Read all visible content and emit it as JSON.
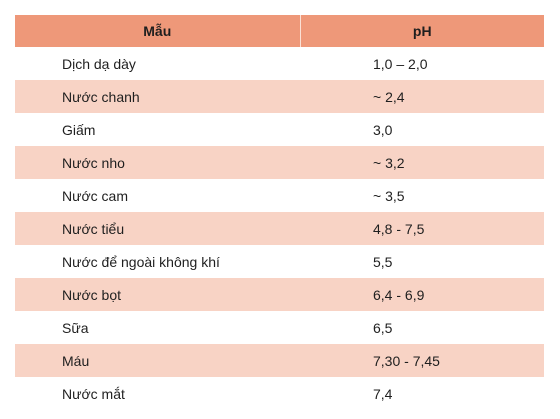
{
  "table": {
    "headers": {
      "sample": "Mẫu",
      "ph": "pH"
    },
    "rows": [
      {
        "sample": "Dịch dạ dày",
        "ph": "1,0 – 2,0"
      },
      {
        "sample": "Nước chanh",
        "ph": "~ 2,4"
      },
      {
        "sample": "Giấm",
        "ph": "3,0"
      },
      {
        "sample": "Nước nho",
        "ph": "~ 3,2"
      },
      {
        "sample": "Nước cam",
        "ph": "~ 3,5"
      },
      {
        "sample": "Nước tiểu",
        "ph": "4,8 - 7,5"
      },
      {
        "sample": "Nước để ngoài không khí",
        "ph": "5,5"
      },
      {
        "sample": "Nước bọt",
        "ph": "6,4 - 6,9"
      },
      {
        "sample": "Sữa",
        "ph": "6,5"
      },
      {
        "sample": "Máu",
        "ph": "7,30 - 7,45"
      },
      {
        "sample": "Nước mắt",
        "ph": "7,4"
      }
    ],
    "colors": {
      "header_bg": "#ee9879",
      "alt_row_bg": "#f8d3c5"
    }
  }
}
